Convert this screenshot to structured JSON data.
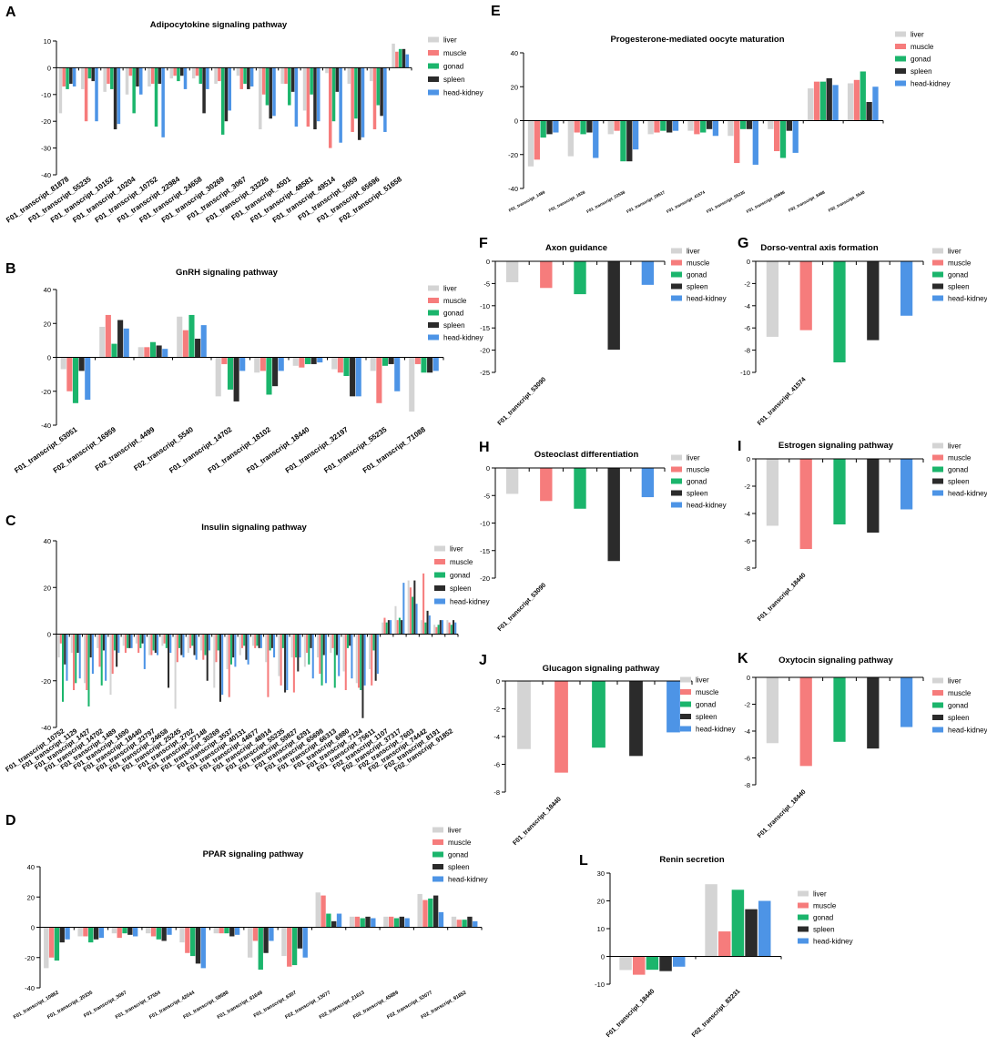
{
  "legend_labels": [
    "liver",
    "muscle",
    "gonad",
    "spleen",
    "head-kidney"
  ],
  "series_colors": {
    "liver": "#d4d4d4",
    "muscle": "#f67c7c",
    "gonad": "#1bb56c",
    "spleen": "#2b2b2b",
    "head-kidney": "#4d94e6"
  },
  "chart_data": [
    {
      "id": "A",
      "panel_label": "A",
      "type": "bar",
      "title": "Adipocytokine signaling pathway",
      "ylim": [
        -40,
        10
      ],
      "yticks": [
        10,
        0,
        -10,
        -20,
        -30,
        -40
      ],
      "categories": [
        "F01_transcript_81878",
        "F01_transcript_55235",
        "F01_transcript_10152",
        "F01_transcript_10204",
        "F01_transcript_10752",
        "F01_transcript_22984",
        "F01_transcript_24658",
        "F01_transcript_30269",
        "F01_transcript_3067",
        "F01_transcript_33226",
        "F01_transcript_4501",
        "F01_transcript_48581",
        "F01_transcript_49514",
        "F01_transcript_5059",
        "F01_transcript_65696",
        "F02_transcript_51658"
      ],
      "series": [
        {
          "name": "liver",
          "values": [
            -17,
            -8,
            -9,
            -10,
            -7,
            -4,
            -4,
            -6,
            -3,
            -23,
            -6,
            -16,
            -2,
            -6,
            -5,
            9
          ]
        },
        {
          "name": "muscle",
          "values": [
            -7,
            -20,
            -6,
            -3,
            -6,
            -3,
            -3,
            -5,
            -8,
            -10,
            -6,
            -22,
            -30,
            -24,
            -23,
            6
          ]
        },
        {
          "name": "gonad",
          "values": [
            -8,
            -4,
            -8,
            -17,
            -22,
            -5,
            -6,
            -25,
            -6,
            -14,
            -14,
            -10,
            -20,
            -19,
            -14,
            7
          ]
        },
        {
          "name": "spleen",
          "values": [
            -6,
            -5,
            -23,
            -7,
            -6,
            -3,
            -17,
            -20,
            -8,
            -19,
            -9,
            -23,
            -9,
            -27,
            -18,
            7
          ]
        },
        {
          "name": "head-kidney",
          "values": [
            -7,
            -20,
            -21,
            -10,
            -26,
            -8,
            -8,
            -16,
            -7,
            -18,
            -22,
            -20,
            -28,
            -26,
            -24,
            5
          ]
        }
      ]
    },
    {
      "id": "B",
      "panel_label": "B",
      "type": "bar",
      "title": "GnRH signaling pathway",
      "ylim": [
        -40,
        40
      ],
      "yticks": [
        40,
        20,
        0,
        -20,
        -40
      ],
      "categories": [
        "F01_transcript_63051",
        "F02_transcript_16959",
        "F02_transcript_4499",
        "F02_transcript_5540",
        "F01_transcript_14702",
        "F01_transcript_18102",
        "F01_transcript_18440",
        "F01_transcript_32197",
        "F01_transcript_55235",
        "F01_transcript_71088"
      ],
      "series": [
        {
          "name": "liver",
          "values": [
            -7,
            18,
            6,
            24,
            -23,
            -9,
            -5,
            -7,
            -8,
            -32
          ]
        },
        {
          "name": "muscle",
          "values": [
            -20,
            25,
            6,
            16,
            -4,
            -8,
            -6,
            -9,
            -27,
            -4
          ]
        },
        {
          "name": "gonad",
          "values": [
            -27,
            8,
            9,
            25,
            -19,
            -22,
            -4,
            -11,
            -5,
            -9
          ]
        },
        {
          "name": "spleen",
          "values": [
            -8,
            22,
            7,
            11,
            -26,
            -17,
            -4,
            -23,
            -4,
            -9
          ]
        },
        {
          "name": "head-kidney",
          "values": [
            -25,
            17,
            5,
            19,
            -8,
            -8,
            -3,
            -23,
            -20,
            -8
          ]
        }
      ]
    },
    {
      "id": "C",
      "panel_label": "C",
      "type": "bar",
      "title": "Insulin signaling pathway",
      "ylim": [
        -40,
        40
      ],
      "yticks": [
        40,
        20,
        0,
        -20,
        -40
      ],
      "categories": [
        "F01_transcript_10752",
        "F01_transcript_1129",
        "F01_transcript_1427",
        "F01_transcript_14702",
        "F01_transcript_1489",
        "F01_transcript_1690",
        "F01_transcript_18440",
        "F01_transcript_23797",
        "F01_transcript_24658",
        "F01_transcript_25245",
        "F01_transcript_2702",
        "F01_transcript_27148",
        "F01_transcript_30269",
        "F01_transcript_3537",
        "F01_transcript_40131",
        "F01_transcript_44677",
        "F01_transcript_48914",
        "F01_transcript_55235",
        "F01_transcript_59827",
        "F01_transcript_6291",
        "F01_transcript_65698",
        "F01_transcript_66313",
        "F01_transcript_6880",
        "F01_transcript_7124",
        "F01_transcript_75611",
        "F02_transcript_1107",
        "F02_transcript_37317",
        "F02_transcript_7603",
        "F02_transcript_74442",
        "F02_transcript_8191",
        "F02_transcript_91852"
      ],
      "series": [
        {
          "name": "liver",
          "values": [
            -10,
            -8,
            -21,
            -6,
            -26,
            -5,
            -4,
            -9,
            -5,
            -32,
            -8,
            -7,
            -23,
            -15,
            -9,
            -5,
            -12,
            -18,
            -10,
            -14,
            -10,
            -8,
            -16,
            -21,
            -15,
            5,
            12,
            23,
            6,
            4,
            6
          ]
        },
        {
          "name": "muscle",
          "values": [
            -4,
            -24,
            -24,
            -14,
            -17,
            -8,
            -8,
            -9,
            -4,
            -12,
            -6,
            -11,
            -12,
            -27,
            -6,
            -6,
            -27,
            -22,
            -25,
            -8,
            -17,
            -6,
            -24,
            -23,
            -22,
            7,
            6,
            20,
            26,
            3,
            5
          ]
        },
        {
          "name": "gonad",
          "values": [
            -29,
            -21,
            -31,
            -22,
            -7,
            -6,
            -6,
            -7,
            -6,
            -6,
            -5,
            -9,
            -7,
            -13,
            -5,
            -5,
            -7,
            -6,
            -10,
            -13,
            -22,
            -23,
            -6,
            -24,
            -7,
            5,
            7,
            16,
            5,
            4,
            4
          ]
        },
        {
          "name": "spleen",
          "values": [
            -13,
            -8,
            -10,
            -7,
            -14,
            -6,
            -4,
            -8,
            -23,
            -9,
            -9,
            -20,
            -29,
            -10,
            -11,
            -6,
            -6,
            -25,
            -16,
            -6,
            -9,
            -9,
            -5,
            -36,
            -20,
            6,
            6,
            23,
            10,
            6,
            6
          ]
        },
        {
          "name": "head-kidney",
          "values": [
            -20,
            -19,
            -17,
            -20,
            -8,
            -6,
            -15,
            -9,
            -8,
            -10,
            -11,
            -7,
            -26,
            -14,
            -13,
            -6,
            -10,
            -24,
            -10,
            -19,
            -21,
            -18,
            -19,
            -22,
            -17,
            6,
            22,
            13,
            8,
            6,
            5
          ]
        }
      ]
    },
    {
      "id": "D",
      "panel_label": "D",
      "type": "bar",
      "title": "PPAR signaling pathway",
      "ylim": [
        -40,
        40
      ],
      "yticks": [
        40,
        20,
        0,
        -20,
        -40
      ],
      "categories": [
        "F01_transcript_10862",
        "F01_transcript_20335",
        "F01_transcript_3067",
        "F01_transcript_37554",
        "F01_transcript_42044",
        "F01_transcript_58588",
        "F01_transcript_61649",
        "F01_transcript_6307",
        "F02_transcript_13077",
        "F02_transcript_21613",
        "F02_transcript_45889",
        "F02_transcript_53077",
        "F02_transcript_91852"
      ],
      "series": [
        {
          "name": "liver",
          "values": [
            -27,
            -6,
            -4,
            -4,
            -10,
            -4,
            -20,
            -19,
            23,
            7,
            7,
            22,
            7
          ]
        },
        {
          "name": "muscle",
          "values": [
            -20,
            -6,
            -7,
            -6,
            -17,
            -4,
            -9,
            -26,
            21,
            7,
            7,
            18,
            5
          ]
        },
        {
          "name": "gonad",
          "values": [
            -22,
            -10,
            -4,
            -8,
            -19,
            -4,
            -28,
            -25,
            9,
            6,
            6,
            19,
            5
          ]
        },
        {
          "name": "spleen",
          "values": [
            -10,
            -8,
            -5,
            -9,
            -24,
            -6,
            -17,
            -14,
            4,
            7,
            7,
            21,
            7
          ]
        },
        {
          "name": "head-kidney",
          "values": [
            -8,
            -7,
            -6,
            -5,
            -27,
            -5,
            -9,
            -20,
            9,
            6,
            6,
            10,
            4
          ]
        }
      ]
    },
    {
      "id": "E",
      "panel_label": "E",
      "type": "bar",
      "title": "Progesterone-mediated oocyte maturation",
      "ylim": [
        -40,
        40
      ],
      "yticks": [
        40,
        20,
        0,
        -20,
        -40
      ],
      "categories": [
        "F01_transcript_1489",
        "F01_transcript_1828",
        "F01_transcript_22538",
        "F01_transcript_29517",
        "F01_transcript_41574",
        "F01_transcript_55235",
        "F01_transcript_65696",
        "F02_transcript_8488",
        "F02_transcript_5540"
      ],
      "series": [
        {
          "name": "liver",
          "values": [
            -27,
            -21,
            -8,
            -8,
            -6,
            -9,
            -5,
            19,
            22
          ]
        },
        {
          "name": "muscle",
          "values": [
            -23,
            -7,
            -6,
            -7,
            -8,
            -25,
            -18,
            23,
            24
          ]
        },
        {
          "name": "gonad",
          "values": [
            -10,
            -8,
            -24,
            -6,
            -7,
            -5,
            -22,
            23,
            29
          ]
        },
        {
          "name": "spleen",
          "values": [
            -8,
            -7,
            -24,
            -7,
            -5,
            -5,
            -6,
            25,
            11
          ]
        },
        {
          "name": "head-kidney",
          "values": [
            -7,
            -22,
            -17,
            -6,
            -9,
            -26,
            -19,
            21,
            20
          ]
        }
      ]
    },
    {
      "id": "F",
      "panel_label": "F",
      "type": "bar",
      "mode": "groups",
      "title": "Axon guidance",
      "ylim": [
        -25,
        0
      ],
      "yticks": [
        0,
        -5,
        -10,
        -15,
        -20,
        -25
      ],
      "categories": [
        "F01_transcript_53090"
      ],
      "series": [
        {
          "name": "liver",
          "values": [
            -4.7
          ]
        },
        {
          "name": "muscle",
          "values": [
            -6.0
          ]
        },
        {
          "name": "gonad",
          "values": [
            -7.4
          ]
        },
        {
          "name": "spleen",
          "values": [
            -19.9
          ]
        },
        {
          "name": "head-kidney",
          "values": [
            -5.3
          ]
        }
      ]
    },
    {
      "id": "G",
      "panel_label": "G",
      "type": "bar",
      "mode": "groups",
      "title": "Dorso-ventral axis formation",
      "ylim": [
        -10,
        0
      ],
      "yticks": [
        0,
        -2,
        -4,
        -6,
        -8,
        -10
      ],
      "categories": [
        "F01_transcript_41574"
      ],
      "series": [
        {
          "name": "liver",
          "values": [
            -6.8
          ]
        },
        {
          "name": "muscle",
          "values": [
            -6.2
          ]
        },
        {
          "name": "gonad",
          "values": [
            -9.1
          ]
        },
        {
          "name": "spleen",
          "values": [
            -7.1
          ]
        },
        {
          "name": "head-kidney",
          "values": [
            -4.9
          ]
        }
      ]
    },
    {
      "id": "H",
      "panel_label": "H",
      "type": "bar",
      "mode": "groups",
      "title": "Osteoclast differentiation",
      "ylim": [
        -20,
        0
      ],
      "yticks": [
        0,
        -5,
        -10,
        -15,
        -20
      ],
      "categories": [
        "F01_transcript_53090"
      ],
      "series": [
        {
          "name": "liver",
          "values": [
            -4.7
          ]
        },
        {
          "name": "muscle",
          "values": [
            -6.0
          ]
        },
        {
          "name": "gonad",
          "values": [
            -7.4
          ]
        },
        {
          "name": "spleen",
          "values": [
            -16.9
          ]
        },
        {
          "name": "head-kidney",
          "values": [
            -5.3
          ]
        }
      ]
    },
    {
      "id": "I",
      "panel_label": "I",
      "type": "bar",
      "mode": "groups",
      "title": "Estrogen signaling pathway",
      "ylim": [
        -8,
        0
      ],
      "yticks": [
        0,
        -2,
        -4,
        -6,
        -8
      ],
      "categories": [
        "F01_transcript_18440"
      ],
      "series": [
        {
          "name": "liver",
          "values": [
            -4.9
          ]
        },
        {
          "name": "muscle",
          "values": [
            -6.6
          ]
        },
        {
          "name": "gonad",
          "values": [
            -4.8
          ]
        },
        {
          "name": "spleen",
          "values": [
            -5.4
          ]
        },
        {
          "name": "head-kidney",
          "values": [
            -3.7
          ]
        }
      ]
    },
    {
      "id": "J",
      "panel_label": "J",
      "type": "bar",
      "mode": "groups",
      "title": "Glucagon signaling pathway",
      "ylim": [
        -8,
        0
      ],
      "yticks": [
        0,
        -2,
        -4,
        -6,
        -8
      ],
      "categories": [
        "F01_transcript_18440"
      ],
      "series": [
        {
          "name": "liver",
          "values": [
            -4.9
          ]
        },
        {
          "name": "muscle",
          "values": [
            -6.6
          ]
        },
        {
          "name": "gonad",
          "values": [
            -4.8
          ]
        },
        {
          "name": "spleen",
          "values": [
            -5.4
          ]
        },
        {
          "name": "head-kidney",
          "values": [
            -3.7
          ]
        }
      ]
    },
    {
      "id": "K",
      "panel_label": "K",
      "type": "bar",
      "mode": "groups",
      "title": "Oxytocin signaling pathway",
      "ylim": [
        -8,
        0
      ],
      "yticks": [
        0,
        -2,
        -4,
        -6,
        -8
      ],
      "categories": [
        "F01_transcript_18440"
      ],
      "series": [
        {
          "name": "liver",
          "values": [
            -4.9
          ]
        },
        {
          "name": "muscle",
          "values": [
            -6.6
          ]
        },
        {
          "name": "gonad",
          "values": [
            -4.8
          ]
        },
        {
          "name": "spleen",
          "values": [
            -5.3
          ]
        },
        {
          "name": "head-kidney",
          "values": [
            -3.7
          ]
        }
      ]
    },
    {
      "id": "L",
      "panel_label": "L",
      "type": "bar",
      "title": "Renin secretion",
      "ylim": [
        -10,
        30
      ],
      "yticks": [
        30,
        20,
        10,
        0,
        -10
      ],
      "categories": [
        "F01_transcript_18440",
        "F02_transcript_82231"
      ],
      "series": [
        {
          "name": "liver",
          "values": [
            -4.9,
            26
          ]
        },
        {
          "name": "muscle",
          "values": [
            -6.6,
            9
          ]
        },
        {
          "name": "gonad",
          "values": [
            -4.8,
            24
          ]
        },
        {
          "name": "spleen",
          "values": [
            -5.3,
            17
          ]
        },
        {
          "name": "head-kidney",
          "values": [
            -3.7,
            20
          ]
        }
      ]
    }
  ]
}
